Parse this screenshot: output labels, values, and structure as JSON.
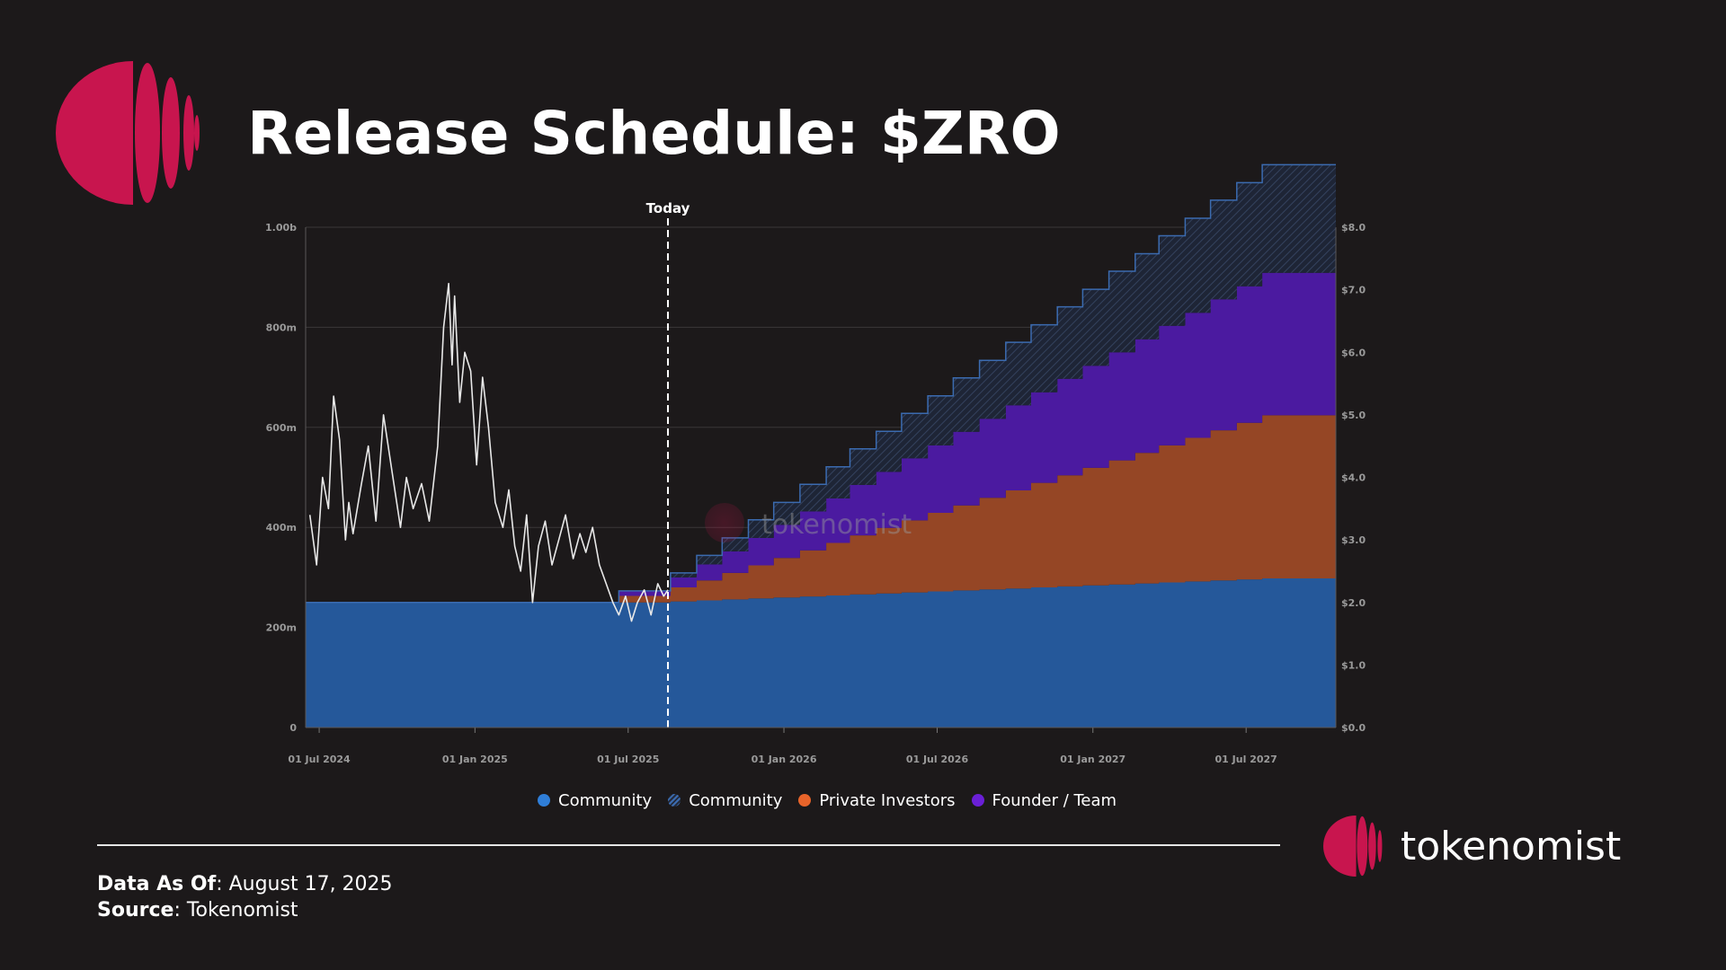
{
  "header": {
    "title": "Release Schedule: $ZRO"
  },
  "brand": {
    "name": "tokenomist",
    "accent": "#c8154e"
  },
  "footer": {
    "data_as_of_label": "Data As Of",
    "data_as_of_value": ": August 17, 2025",
    "source_label": "Source",
    "source_value": ": Tokenomist"
  },
  "chart_data": {
    "type": "area",
    "watermark": "tokenomist",
    "today_label": "Today",
    "today_date": "2025-08-17",
    "x_range": [
      "2024-06-15",
      "2027-10-15"
    ],
    "x_ticks": [
      {
        "date": "2024-07-01",
        "label": "01 Jul 2024"
      },
      {
        "date": "2025-01-01",
        "label": "01 Jan 2025"
      },
      {
        "date": "2025-07-01",
        "label": "01 Jul 2025"
      },
      {
        "date": "2026-01-01",
        "label": "01 Jan 2026"
      },
      {
        "date": "2026-07-01",
        "label": "01 Jul 2026"
      },
      {
        "date": "2027-01-01",
        "label": "01 Jan 2027"
      },
      {
        "date": "2027-07-01",
        "label": "01 Jul 2027"
      }
    ],
    "y_left": {
      "range": [
        0,
        1000000000
      ],
      "ticks": [
        {
          "value": 0,
          "label": "0"
        },
        {
          "value": 200000000,
          "label": "200m"
        },
        {
          "value": 400000000,
          "label": "400m"
        },
        {
          "value": 600000000,
          "label": "600m"
        },
        {
          "value": 800000000,
          "label": "800m"
        },
        {
          "value": 1000000000,
          "label": "1.00b"
        }
      ]
    },
    "y_right": {
      "range": [
        0,
        8
      ],
      "ticks": [
        {
          "value": 0,
          "label": "$0.0"
        },
        {
          "value": 1,
          "label": "$1.0"
        },
        {
          "value": 2,
          "label": "$2.0"
        },
        {
          "value": 3,
          "label": "$3.0"
        },
        {
          "value": 4,
          "label": "$4.0"
        },
        {
          "value": 5,
          "label": "$5.0"
        },
        {
          "value": 6,
          "label": "$6.0"
        },
        {
          "value": 7,
          "label": "$7.0"
        },
        {
          "value": 8,
          "label": "$8.0"
        }
      ]
    },
    "grid": true,
    "legend": "bottom",
    "legend_items": [
      {
        "label": "Community",
        "color": "#2f7ed8",
        "style": "solid"
      },
      {
        "label": "Community",
        "color": "#3b6bb0",
        "style": "hatched"
      },
      {
        "label": "Private Investors",
        "color": "#e8642a",
        "style": "solid"
      },
      {
        "label": "Founder / Team",
        "color": "#6a1fd6",
        "style": "solid"
      }
    ],
    "colors": {
      "community": "#25589a",
      "community_unlocked": "#1e2536",
      "private_investors": "#954625",
      "founder_team": "#4b1aa0",
      "price_line": "#e8e8e8"
    },
    "unlock_series": {
      "dates": [
        "2024-06-15",
        "2025-06-20",
        "2025-08-20",
        "2025-09-20",
        "2025-10-20",
        "2025-11-20",
        "2025-12-20",
        "2026-01-20",
        "2026-02-20",
        "2026-03-20",
        "2026-04-20",
        "2026-05-20",
        "2026-06-20",
        "2026-07-20",
        "2026-08-20",
        "2026-09-20",
        "2026-10-20",
        "2026-11-20",
        "2026-12-20",
        "2027-01-20",
        "2027-02-20",
        "2027-03-20",
        "2027-04-20",
        "2027-05-20",
        "2027-06-20",
        "2027-07-20",
        "2027-10-15"
      ],
      "community": [
        250000000,
        250000000,
        252000000,
        254000000,
        256000000,
        258000000,
        260000000,
        262000000,
        264000000,
        266000000,
        268000000,
        270000000,
        272000000,
        274000000,
        276000000,
        278000000,
        280000000,
        282000000,
        284000000,
        286000000,
        288000000,
        290000000,
        292000000,
        294000000,
        296000000,
        298000000,
        298000000
      ],
      "private_investors": [
        0,
        13000000,
        28000000,
        40000000,
        53000000,
        66000000,
        79000000,
        92000000,
        105000000,
        118000000,
        131000000,
        144000000,
        157000000,
        170000000,
        183000000,
        196000000,
        209000000,
        222000000,
        235000000,
        248000000,
        261000000,
        274000000,
        287000000,
        300000000,
        313000000,
        326000000,
        326000000
      ],
      "founder_team": [
        0,
        10000000,
        20000000,
        32000000,
        43000000,
        55000000,
        66000000,
        78000000,
        89000000,
        101000000,
        112000000,
        124000000,
        135000000,
        147000000,
        158000000,
        170000000,
        181000000,
        193000000,
        204000000,
        216000000,
        227000000,
        239000000,
        250000000,
        262000000,
        273000000,
        285000000,
        285000000
      ],
      "community_unlocked": [
        0,
        0,
        9000000,
        18000000,
        27000000,
        36000000,
        45000000,
        54000000,
        63000000,
        72000000,
        81000000,
        90000000,
        99000000,
        108000000,
        117000000,
        126000000,
        135000000,
        144000000,
        153000000,
        162000000,
        171000000,
        180000000,
        189000000,
        198000000,
        207000000,
        216000000,
        216000000
      ]
    },
    "price_series": {
      "name": "Price",
      "dates": [
        "2024-06-20",
        "2024-06-28",
        "2024-07-05",
        "2024-07-12",
        "2024-07-18",
        "2024-07-25",
        "2024-08-01",
        "2024-08-05",
        "2024-08-10",
        "2024-08-20",
        "2024-08-28",
        "2024-09-06",
        "2024-09-15",
        "2024-09-25",
        "2024-10-05",
        "2024-10-12",
        "2024-10-20",
        "2024-10-30",
        "2024-11-08",
        "2024-11-18",
        "2024-11-25",
        "2024-12-01",
        "2024-12-05",
        "2024-12-08",
        "2024-12-14",
        "2024-12-20",
        "2024-12-27",
        "2025-01-03",
        "2025-01-10",
        "2025-01-17",
        "2025-01-25",
        "2025-02-03",
        "2025-02-10",
        "2025-02-17",
        "2025-02-24",
        "2025-03-03",
        "2025-03-10",
        "2025-03-17",
        "2025-03-25",
        "2025-04-02",
        "2025-04-10",
        "2025-04-18",
        "2025-04-27",
        "2025-05-05",
        "2025-05-12",
        "2025-05-20",
        "2025-05-28",
        "2025-06-05",
        "2025-06-13",
        "2025-06-20",
        "2025-06-28",
        "2025-07-05",
        "2025-07-12",
        "2025-07-20",
        "2025-07-28",
        "2025-08-05",
        "2025-08-12",
        "2025-08-17"
      ],
      "values": [
        3.4,
        2.6,
        4.0,
        3.5,
        5.3,
        4.6,
        3.0,
        3.6,
        3.1,
        3.9,
        4.5,
        3.3,
        5.0,
        4.1,
        3.2,
        4.0,
        3.5,
        3.9,
        3.3,
        4.5,
        6.4,
        7.1,
        5.8,
        6.9,
        5.2,
        6.0,
        5.7,
        4.2,
        5.6,
        4.8,
        3.6,
        3.2,
        3.8,
        2.9,
        2.5,
        3.4,
        2.0,
        2.9,
        3.3,
        2.6,
        3.0,
        3.4,
        2.7,
        3.1,
        2.8,
        3.2,
        2.6,
        2.3,
        2.0,
        1.8,
        2.1,
        1.7,
        2.0,
        2.2,
        1.8,
        2.3,
        2.1,
        2.2
      ]
    }
  }
}
